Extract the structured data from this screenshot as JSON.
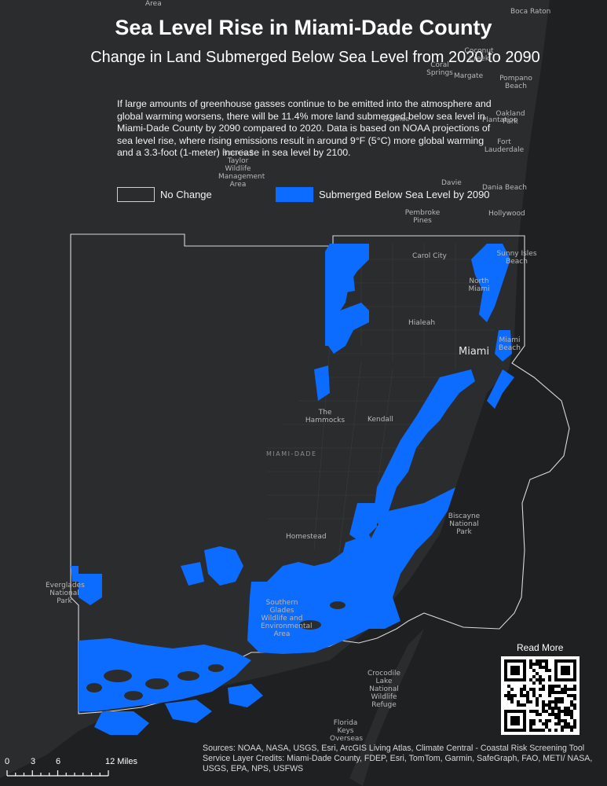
{
  "title": "Sea Level Rise in Miami-Dade County",
  "subtitle": "Change in Land Submerged Below Sea Level from 2020 to 2090",
  "description": "If large amounts of greenhouse gasses continue to be emitted into the atmosphere and global warming worsens, there will be 11.4% more land submerged below sea level in Miami-Dade County by 2090 compared to 2020. Data is based on NOAA projections of sea level rise, where rising emissions result in around 9°F (5°C) more global warming and a 3.3-foot (1-meter) increase in sea level by 2100.",
  "legend": {
    "no_change": "No Change",
    "submerged": "Submerged Below Sea Level by 2090"
  },
  "colors": {
    "background": "#2b2c2e",
    "ocean": "#1f2022",
    "submerged": "#0b6cff",
    "boundary": "#d9d9d9"
  },
  "places": {
    "boca_raton": "Boca Raton",
    "area_top": "Area",
    "coconut_creek": "Coconut Creek",
    "coral_springs": "Coral Springs",
    "margate": "Margate",
    "pompano_beach": "Pompano Beach",
    "oakland_park": "Oakland Park",
    "fort_lauderdale": "Fort Lauderdale",
    "plantation": "Plantation",
    "sunrise": "Sunrise",
    "davie": "Davie",
    "dania_beach": "Dania Beach",
    "pembroke_pines": "Pembroke Pines",
    "hollywood": "Hollywood",
    "francis_taylor": "Francis S Taylor Wildlife Management Area",
    "carol_city": "Carol City",
    "sunny_isles": "Sunny Isles Beach",
    "north_miami": "North Miami",
    "hialeah": "Hialeah",
    "miami": "Miami",
    "miami_beach": "Miami Beach",
    "the_hammocks": "The Hammocks",
    "kendall": "Kendall",
    "miami_dade": "MIAMI-DADE",
    "biscayne": "Biscayne National Park",
    "homestead": "Homestead",
    "everglades": "Everglades National Park",
    "southern_glades": "Southern Glades Wildlife and Environmental Area",
    "crocodile_lake": "Crocodile Lake National Wildlife Refuge",
    "florida_keys": "Florida Keys Overseas"
  },
  "read_more": "Read More",
  "sources": "Sources: NOAA, NASA, USGS, Esri, ArcGIS Living Atlas, Climate Central - Coastal Risk Screening Tool",
  "credits": "Service Layer Credits: Miami-Dade County, FDEP, Esri, TomTom, Garmin, SafeGraph, FAO, METI/ NASA, USGS, EPA, NPS, USFWS",
  "scale": {
    "labels": [
      "0",
      "3",
      "6",
      "12 Miles"
    ],
    "miles": [
      0,
      3,
      6,
      12
    ]
  }
}
